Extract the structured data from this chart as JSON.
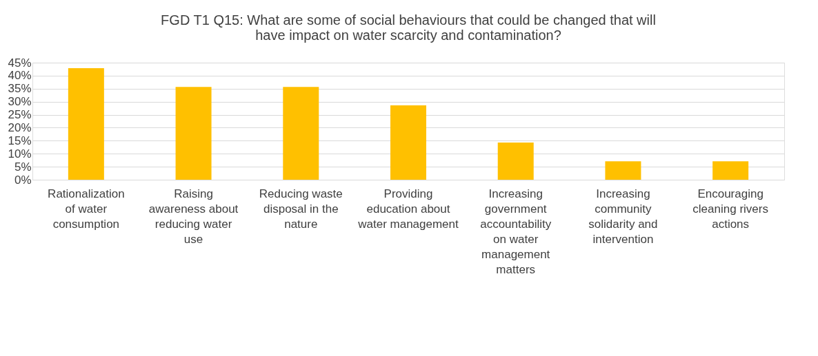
{
  "chart_data": {
    "type": "bar",
    "title": "FGD T1 Q15: What are some of social behaviours that could be changed that will have impact on water scarcity and contamination?",
    "categories": [
      "Rationalization of water consumption",
      "Raising awareness about reducing water use",
      "Reducing waste disposal in the nature",
      "Providing education about water management",
      "Increasing government accountability on water management matters",
      "Increasing community solidarity and intervention",
      "Encouraging cleaning rivers actions"
    ],
    "values": [
      42.9,
      35.7,
      35.7,
      28.6,
      14.3,
      7.1,
      7.1
    ],
    "color": "#ffc000",
    "ylim": [
      0,
      45
    ],
    "yticks": [
      {
        "value": 0,
        "label": "0%"
      },
      {
        "value": 5,
        "label": "5%"
      },
      {
        "value": 10,
        "label": "10%"
      },
      {
        "value": 15,
        "label": "15%"
      },
      {
        "value": 20,
        "label": "20%"
      },
      {
        "value": 25,
        "label": "25%"
      },
      {
        "value": 30,
        "label": "30%"
      },
      {
        "value": 35,
        "label": "35%"
      },
      {
        "value": 40,
        "label": "40%"
      },
      {
        "value": 45,
        "label": "45%"
      }
    ],
    "grid": "y"
  }
}
